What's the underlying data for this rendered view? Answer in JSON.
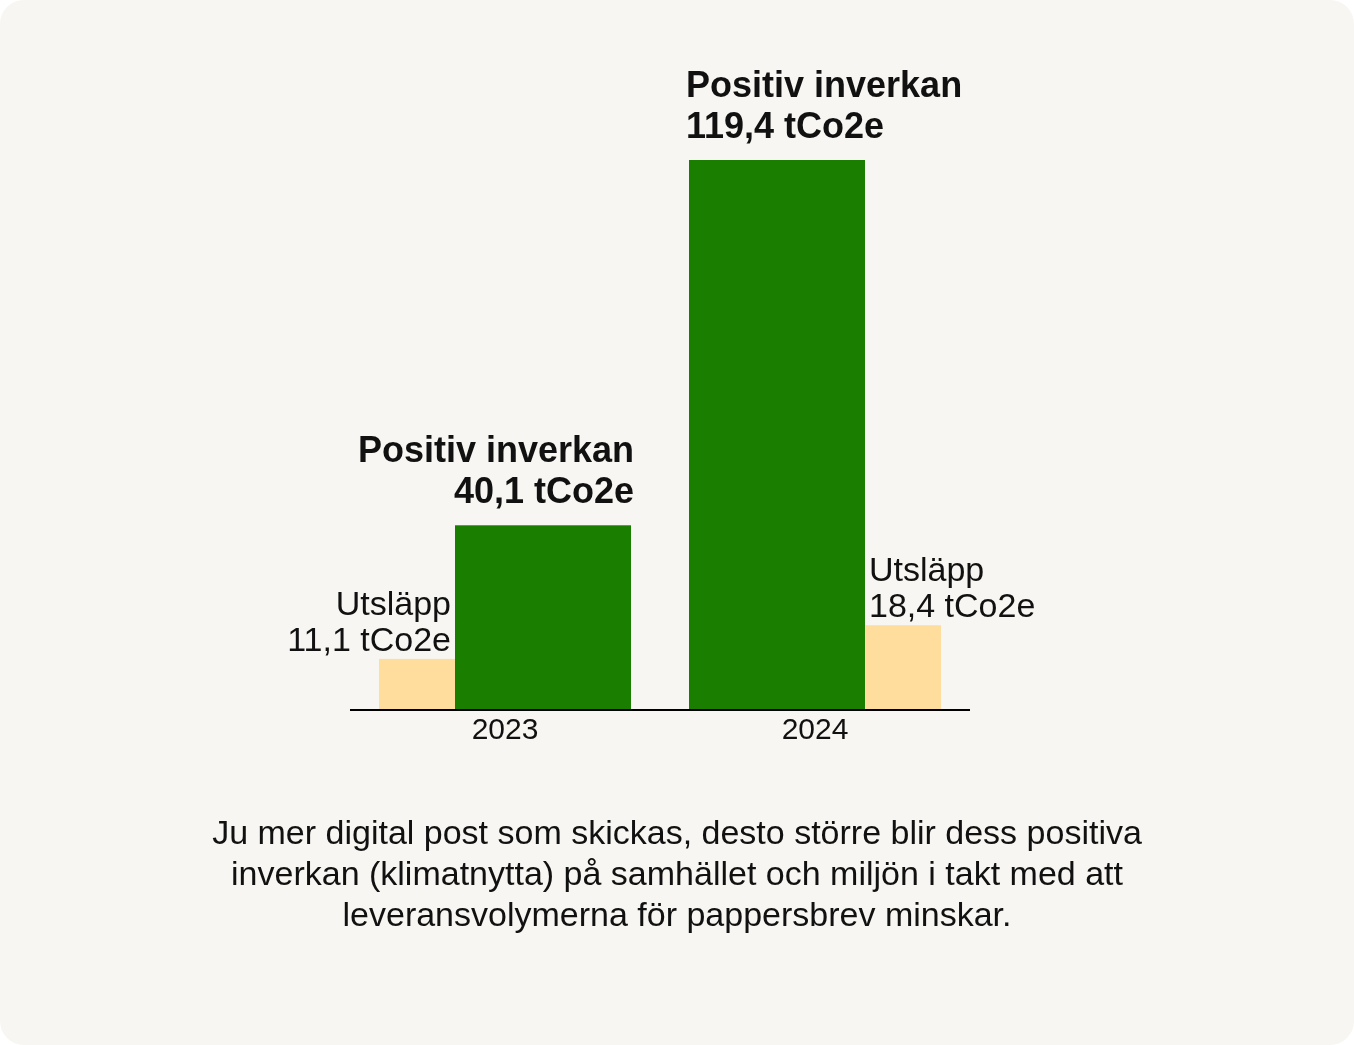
{
  "chart_data": {
    "type": "bar",
    "categories": [
      "2023",
      "2024"
    ],
    "series": [
      {
        "name": "Utsläpp",
        "color": "#ffdd9c",
        "values": [
          11.1,
          18.4
        ],
        "value_labels": [
          "11,1 tCo2e",
          "18,4 tCo2e"
        ]
      },
      {
        "name": "Positiv inverkan",
        "color": "#1a7f00",
        "values": [
          40.1,
          119.4
        ],
        "value_labels": [
          "40,1 tCo2e",
          "119,4 tCo2e"
        ]
      }
    ],
    "annotations": [
      "Ju mer digital post som skickas, desto större blir dess positiva inverkan (klimatnytta) på samhället och miljön i takt med att leveransvolymerna för pappersbrev minskar."
    ]
  }
}
